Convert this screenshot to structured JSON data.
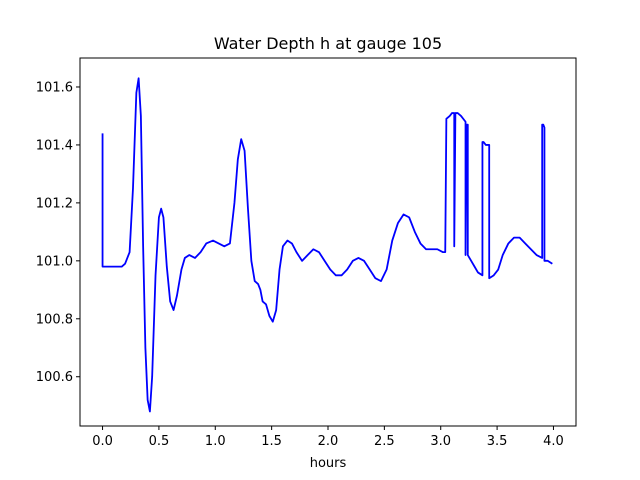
{
  "chart_data": {
    "type": "line",
    "title": "Water Depth h at gauge 105",
    "xlabel": "hours",
    "ylabel": "",
    "xlim": [
      -0.2,
      4.2
    ],
    "ylim": [
      100.43,
      101.7
    ],
    "xticks": [
      0.0,
      0.5,
      1.0,
      1.5,
      2.0,
      2.5,
      3.0,
      3.5,
      4.0
    ],
    "xtick_labels": [
      "0.0",
      "0.5",
      "1.0",
      "1.5",
      "2.0",
      "2.5",
      "3.0",
      "3.5",
      "4.0"
    ],
    "yticks": [
      100.6,
      100.8,
      101.0,
      101.2,
      101.4,
      101.6
    ],
    "ytick_labels": [
      "100.6",
      "100.8",
      "101.0",
      "101.2",
      "101.4",
      "101.6"
    ],
    "grid": false,
    "series": [
      {
        "color": "#0000ff",
        "points": [
          [
            0.0,
            101.44
          ],
          [
            0.0,
            100.98
          ],
          [
            0.05,
            100.98
          ],
          [
            0.1,
            100.98
          ],
          [
            0.17,
            100.98
          ],
          [
            0.2,
            100.99
          ],
          [
            0.24,
            101.03
          ],
          [
            0.27,
            101.25
          ],
          [
            0.3,
            101.58
          ],
          [
            0.32,
            101.63
          ],
          [
            0.34,
            101.5
          ],
          [
            0.36,
            101.05
          ],
          [
            0.38,
            100.7
          ],
          [
            0.4,
            100.52
          ],
          [
            0.42,
            100.48
          ],
          [
            0.44,
            100.6
          ],
          [
            0.47,
            100.95
          ],
          [
            0.5,
            101.15
          ],
          [
            0.52,
            101.18
          ],
          [
            0.54,
            101.15
          ],
          [
            0.57,
            100.98
          ],
          [
            0.6,
            100.86
          ],
          [
            0.63,
            100.83
          ],
          [
            0.66,
            100.88
          ],
          [
            0.7,
            100.97
          ],
          [
            0.73,
            101.01
          ],
          [
            0.77,
            101.02
          ],
          [
            0.82,
            101.01
          ],
          [
            0.87,
            101.03
          ],
          [
            0.92,
            101.06
          ],
          [
            0.98,
            101.07
          ],
          [
            1.03,
            101.06
          ],
          [
            1.08,
            101.05
          ],
          [
            1.13,
            101.06
          ],
          [
            1.17,
            101.2
          ],
          [
            1.2,
            101.35
          ],
          [
            1.23,
            101.42
          ],
          [
            1.26,
            101.38
          ],
          [
            1.29,
            101.18
          ],
          [
            1.32,
            101.0
          ],
          [
            1.35,
            100.93
          ],
          [
            1.38,
            100.92
          ],
          [
            1.4,
            100.9
          ],
          [
            1.42,
            100.86
          ],
          [
            1.45,
            100.85
          ],
          [
            1.48,
            100.81
          ],
          [
            1.51,
            100.79
          ],
          [
            1.54,
            100.83
          ],
          [
            1.57,
            100.97
          ],
          [
            1.6,
            101.05
          ],
          [
            1.64,
            101.07
          ],
          [
            1.68,
            101.06
          ],
          [
            1.72,
            101.03
          ],
          [
            1.77,
            101.0
          ],
          [
            1.82,
            101.02
          ],
          [
            1.87,
            101.04
          ],
          [
            1.92,
            101.03
          ],
          [
            1.97,
            101.0
          ],
          [
            2.02,
            100.97
          ],
          [
            2.07,
            100.95
          ],
          [
            2.12,
            100.95
          ],
          [
            2.17,
            100.97
          ],
          [
            2.22,
            101.0
          ],
          [
            2.27,
            101.01
          ],
          [
            2.32,
            101.0
          ],
          [
            2.37,
            100.97
          ],
          [
            2.42,
            100.94
          ],
          [
            2.47,
            100.93
          ],
          [
            2.52,
            100.97
          ],
          [
            2.57,
            101.07
          ],
          [
            2.62,
            101.13
          ],
          [
            2.67,
            101.16
          ],
          [
            2.72,
            101.15
          ],
          [
            2.77,
            101.1
          ],
          [
            2.82,
            101.06
          ],
          [
            2.87,
            101.04
          ],
          [
            2.92,
            101.04
          ],
          [
            2.97,
            101.04
          ],
          [
            3.02,
            101.03
          ],
          [
            3.04,
            101.03
          ],
          [
            3.05,
            101.49
          ],
          [
            3.08,
            101.5
          ],
          [
            3.1,
            101.51
          ],
          [
            3.12,
            101.51
          ],
          [
            3.12,
            101.05
          ],
          [
            3.13,
            101.51
          ],
          [
            3.15,
            101.51
          ],
          [
            3.18,
            101.5
          ],
          [
            3.22,
            101.48
          ],
          [
            3.22,
            101.02
          ],
          [
            3.23,
            101.47
          ],
          [
            3.24,
            101.47
          ],
          [
            3.24,
            101.02
          ],
          [
            3.27,
            101.0
          ],
          [
            3.3,
            100.98
          ],
          [
            3.33,
            100.96
          ],
          [
            3.37,
            100.95
          ],
          [
            3.37,
            101.41
          ],
          [
            3.38,
            101.41
          ],
          [
            3.4,
            101.4
          ],
          [
            3.42,
            101.4
          ],
          [
            3.43,
            101.4
          ],
          [
            3.43,
            100.94
          ],
          [
            3.47,
            100.95
          ],
          [
            3.51,
            100.97
          ],
          [
            3.55,
            101.02
          ],
          [
            3.6,
            101.06
          ],
          [
            3.65,
            101.08
          ],
          [
            3.7,
            101.08
          ],
          [
            3.75,
            101.06
          ],
          [
            3.8,
            101.04
          ],
          [
            3.85,
            101.02
          ],
          [
            3.9,
            101.01
          ],
          [
            3.9,
            101.47
          ],
          [
            3.91,
            101.47
          ],
          [
            3.92,
            101.46
          ],
          [
            3.92,
            101.0
          ],
          [
            3.95,
            101.0
          ],
          [
            3.99,
            100.99
          ]
        ]
      }
    ]
  }
}
